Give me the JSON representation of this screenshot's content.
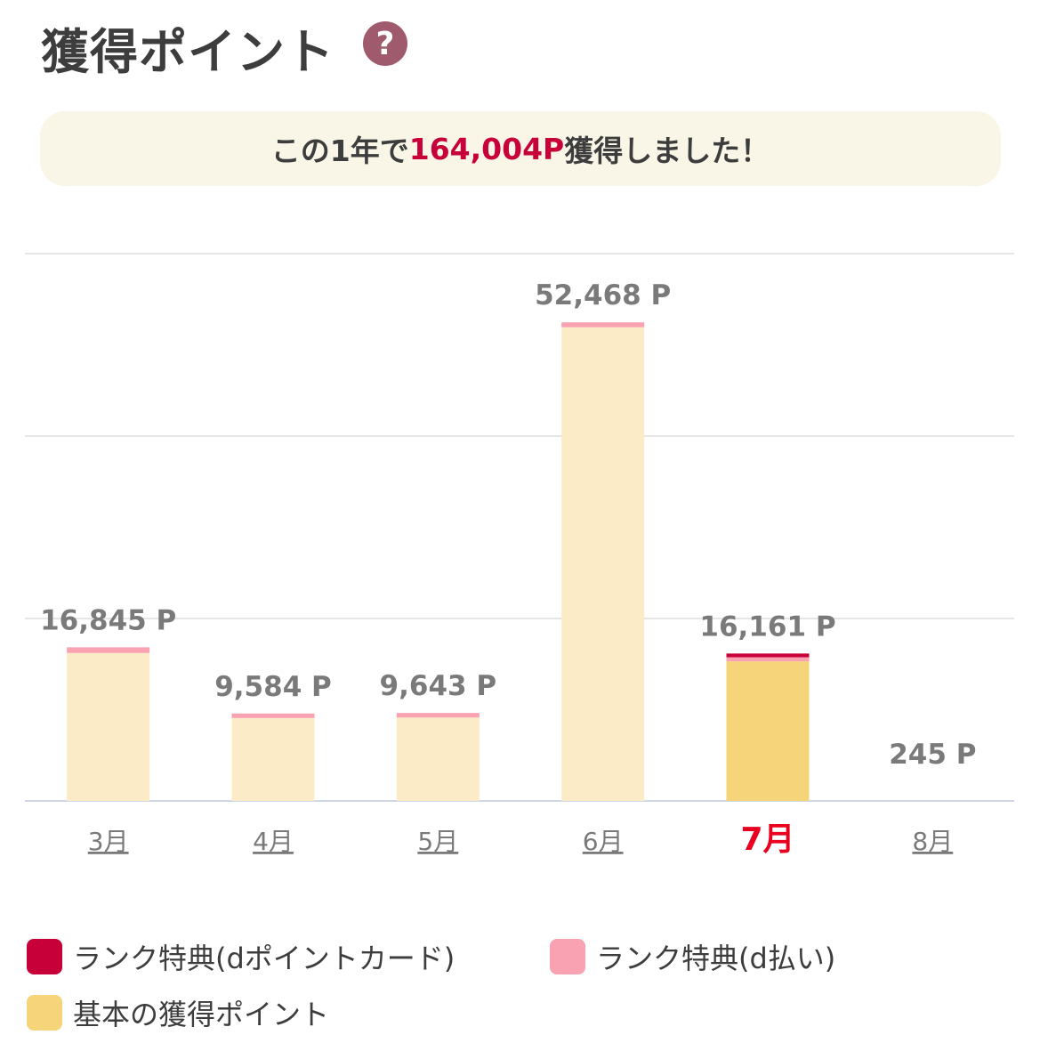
{
  "header": {
    "title": "獲得ポイント",
    "help_icon_label": "?"
  },
  "summary": {
    "prefix": "この1年で",
    "points": "164,004P",
    "suffix": "獲得しました！"
  },
  "chart_data": {
    "type": "bar",
    "stacked": true,
    "categories": [
      "3月",
      "4月",
      "5月",
      "6月",
      "7月",
      "8月"
    ],
    "selected_category": "7月",
    "totals": [
      16845,
      9584,
      9643,
      52468,
      16161,
      245
    ],
    "total_labels": [
      "16,845 P",
      "9,584 P",
      "9,643 P",
      "52,468 P",
      "16,161 P",
      "245 P"
    ],
    "series": [
      {
        "name": "基本の獲得ポイント",
        "values": [
          16220,
          9090,
          9150,
          51930,
          15300,
          245
        ],
        "color": "#f6d47a",
        "faded_color": "#fbecc7"
      },
      {
        "name": "ランク特典(d払い)",
        "values": [
          625,
          494,
          493,
          538,
          450,
          0
        ],
        "color": "#f8a2b2",
        "faded_color": "#f8a2b2"
      },
      {
        "name": "ランク特典(dポイントカード)",
        "values": [
          0,
          0,
          0,
          0,
          411,
          0
        ],
        "color": "#c8003a",
        "faded_color": "#c8003a"
      }
    ],
    "ylim": [
      0,
      60000
    ],
    "grid": true,
    "legend_position": "bottom"
  },
  "legend": [
    {
      "label": "ランク特典(dポイントカード)",
      "color": "#c8003a"
    },
    {
      "label": "ランク特典(d払い)",
      "color": "#f8a2b2"
    },
    {
      "label": "基本の獲得ポイント",
      "color": "#f6d47a"
    }
  ]
}
